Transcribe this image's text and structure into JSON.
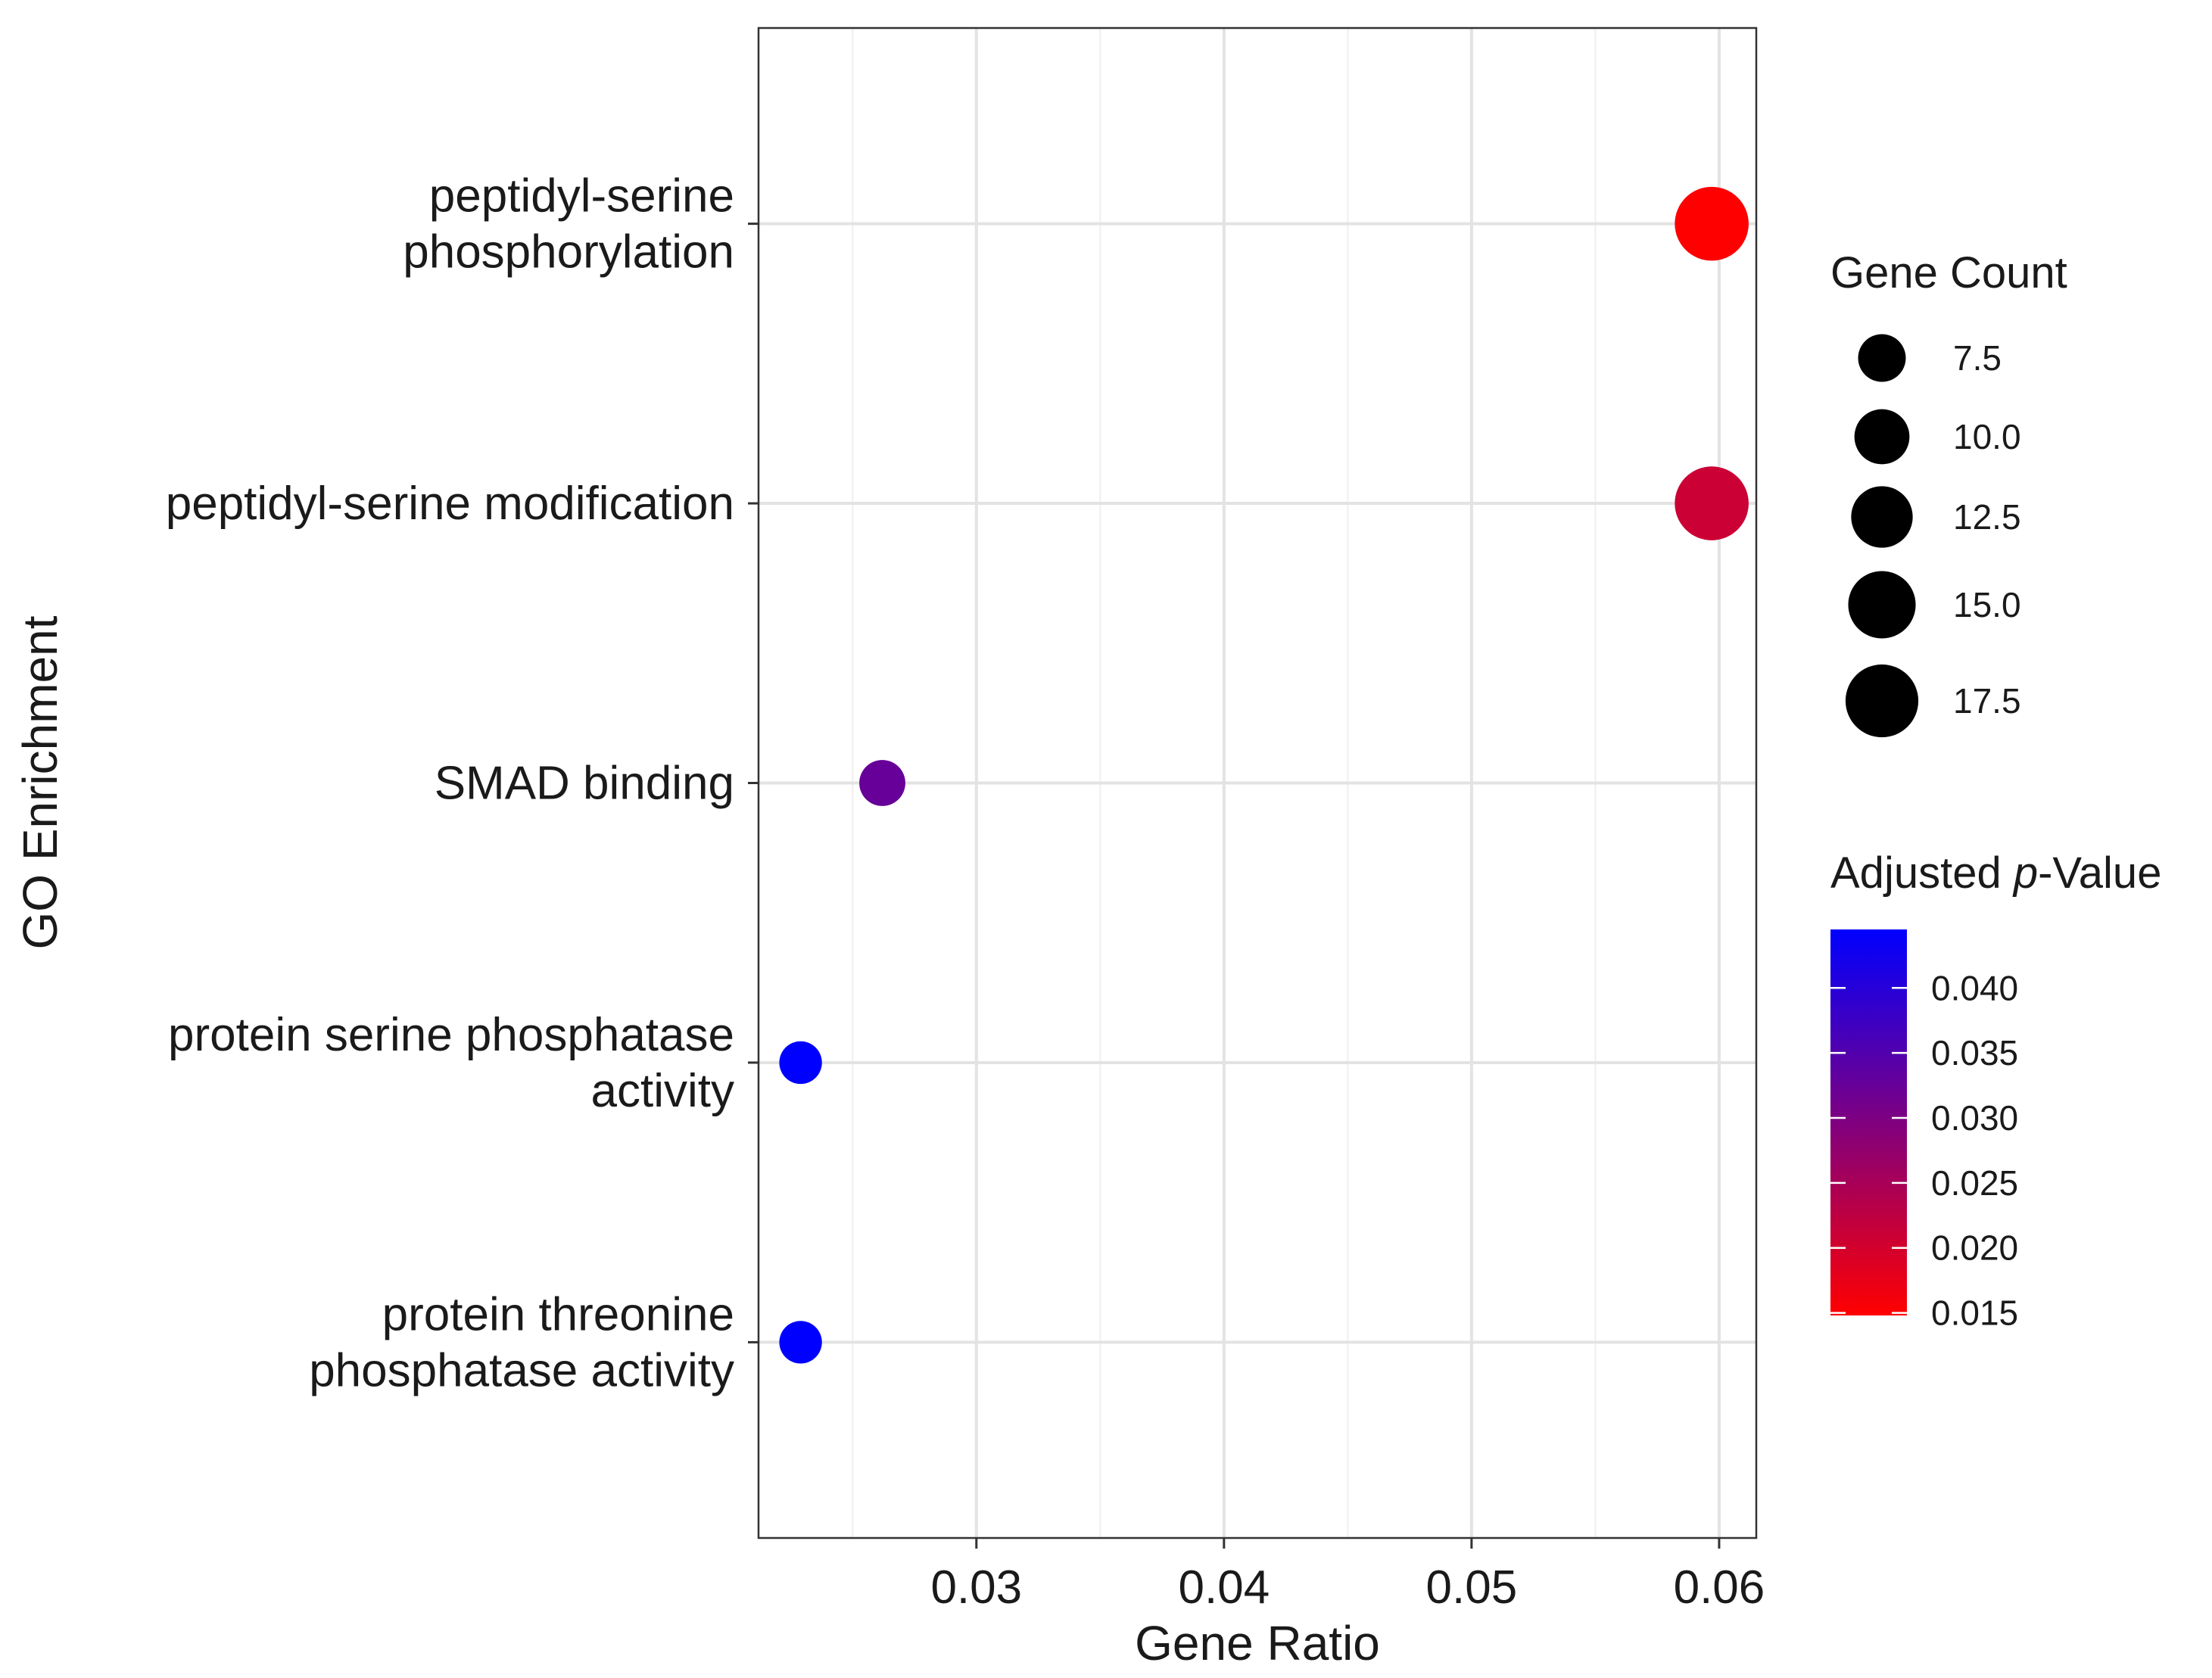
{
  "chart_data": {
    "type": "scatter",
    "title": "",
    "xlabel": "Gene Ratio",
    "ylabel": "GO Enrichment",
    "xlim": [
      0.0212,
      0.0615
    ],
    "xticks": [
      {
        "value": 0.03,
        "label": "0.03"
      },
      {
        "value": 0.04,
        "label": "0.04"
      },
      {
        "value": 0.05,
        "label": "0.05"
      },
      {
        "value": 0.06,
        "label": "0.06"
      }
    ],
    "categories": [
      {
        "label": [
          "peptidyl-serine",
          "phosphorylation"
        ]
      },
      {
        "label": [
          "peptidyl-serine modification"
        ]
      },
      {
        "label": [
          "SMAD binding"
        ]
      },
      {
        "label": [
          "protein serine phosphatase",
          "activity"
        ]
      },
      {
        "label": [
          "protein threonine",
          "phosphatase activity"
        ]
      }
    ],
    "points": [
      {
        "term": "peptidyl-serine phosphorylation",
        "gene_ratio": 0.0597,
        "gene_count": 18,
        "p_adjust": 0.0148
      },
      {
        "term": "peptidyl-serine modification",
        "gene_ratio": 0.0597,
        "gene_count": 18,
        "p_adjust": 0.0208
      },
      {
        "term": "SMAD binding",
        "gene_ratio": 0.0262,
        "gene_count": 7,
        "p_adjust": 0.0325
      },
      {
        "term": "protein serine phosphatase activity",
        "gene_ratio": 0.0229,
        "gene_count": 6,
        "p_adjust": 0.0445
      },
      {
        "term": "protein threonine phosphatase activity",
        "gene_ratio": 0.0229,
        "gene_count": 6,
        "p_adjust": 0.0445
      }
    ],
    "size_legend": {
      "title": "Gene Count",
      "entries": [
        {
          "value": 7.5,
          "label": "7.5"
        },
        {
          "value": 10.0,
          "label": "10.0"
        },
        {
          "value": 12.5,
          "label": "12.5"
        },
        {
          "value": 15.0,
          "label": "15.0"
        },
        {
          "value": 17.5,
          "label": "17.5"
        }
      ]
    },
    "color_legend": {
      "title_prefix": "Adjusted ",
      "title_italic": "p",
      "title_suffix": "-Value",
      "range": [
        0.0148,
        0.0445
      ],
      "low_color": "#ff0000",
      "high_color": "#0000ff",
      "ticks": [
        {
          "value": 0.04,
          "label": "0.040"
        },
        {
          "value": 0.035,
          "label": "0.035"
        },
        {
          "value": 0.03,
          "label": "0.030"
        },
        {
          "value": 0.025,
          "label": "0.025"
        },
        {
          "value": 0.02,
          "label": "0.020"
        },
        {
          "value": 0.015,
          "label": "0.015"
        }
      ]
    }
  }
}
